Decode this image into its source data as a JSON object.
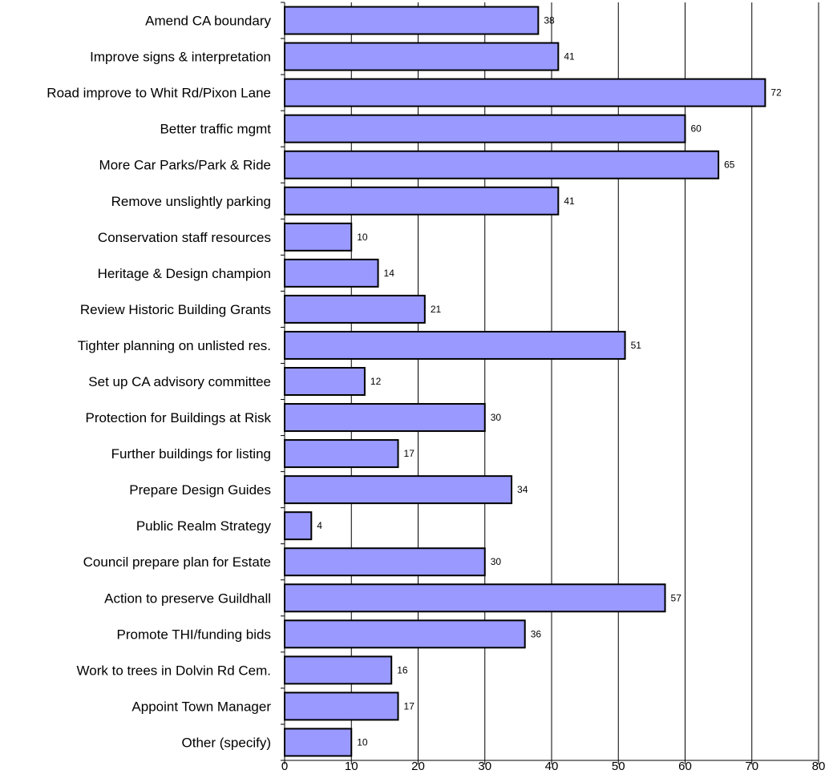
{
  "chart_data": {
    "type": "bar",
    "orientation": "horizontal",
    "title": "",
    "xlabel": "",
    "ylabel": "",
    "xlim": [
      0,
      80
    ],
    "x_ticks": [
      0,
      10,
      20,
      30,
      40,
      50,
      60,
      70,
      80
    ],
    "grid": "vertical gridlines on",
    "legend": "none",
    "bar_color": "#9999ff",
    "bar_edge_color": "#000000",
    "categories": [
      "Amend CA boundary",
      "Improve signs & interpretation",
      "Road improve to Whit Rd/Pixon Lane",
      "Better traffic mgmt",
      "More Car Parks/Park & Ride",
      "Remove unslightly parking",
      "Conservation staff resources",
      "Heritage & Design champion",
      "Review Historic Building Grants",
      "Tighter planning on unlisted res.",
      "Set up CA advisory committee",
      "Protection for Buildings at Risk",
      "Further buildings for listing",
      "Prepare Design Guides",
      "Public Realm Strategy",
      "Council prepare plan for Estate",
      "Action to preserve Guildhall",
      "Promote THI/funding bids",
      "Work to trees in Dolvin Rd Cem.",
      "Appoint Town Manager",
      "Other (specify)"
    ],
    "values": [
      38,
      41,
      72,
      60,
      65,
      41,
      10,
      14,
      21,
      51,
      12,
      30,
      17,
      34,
      4,
      30,
      57,
      36,
      16,
      17,
      10
    ]
  }
}
